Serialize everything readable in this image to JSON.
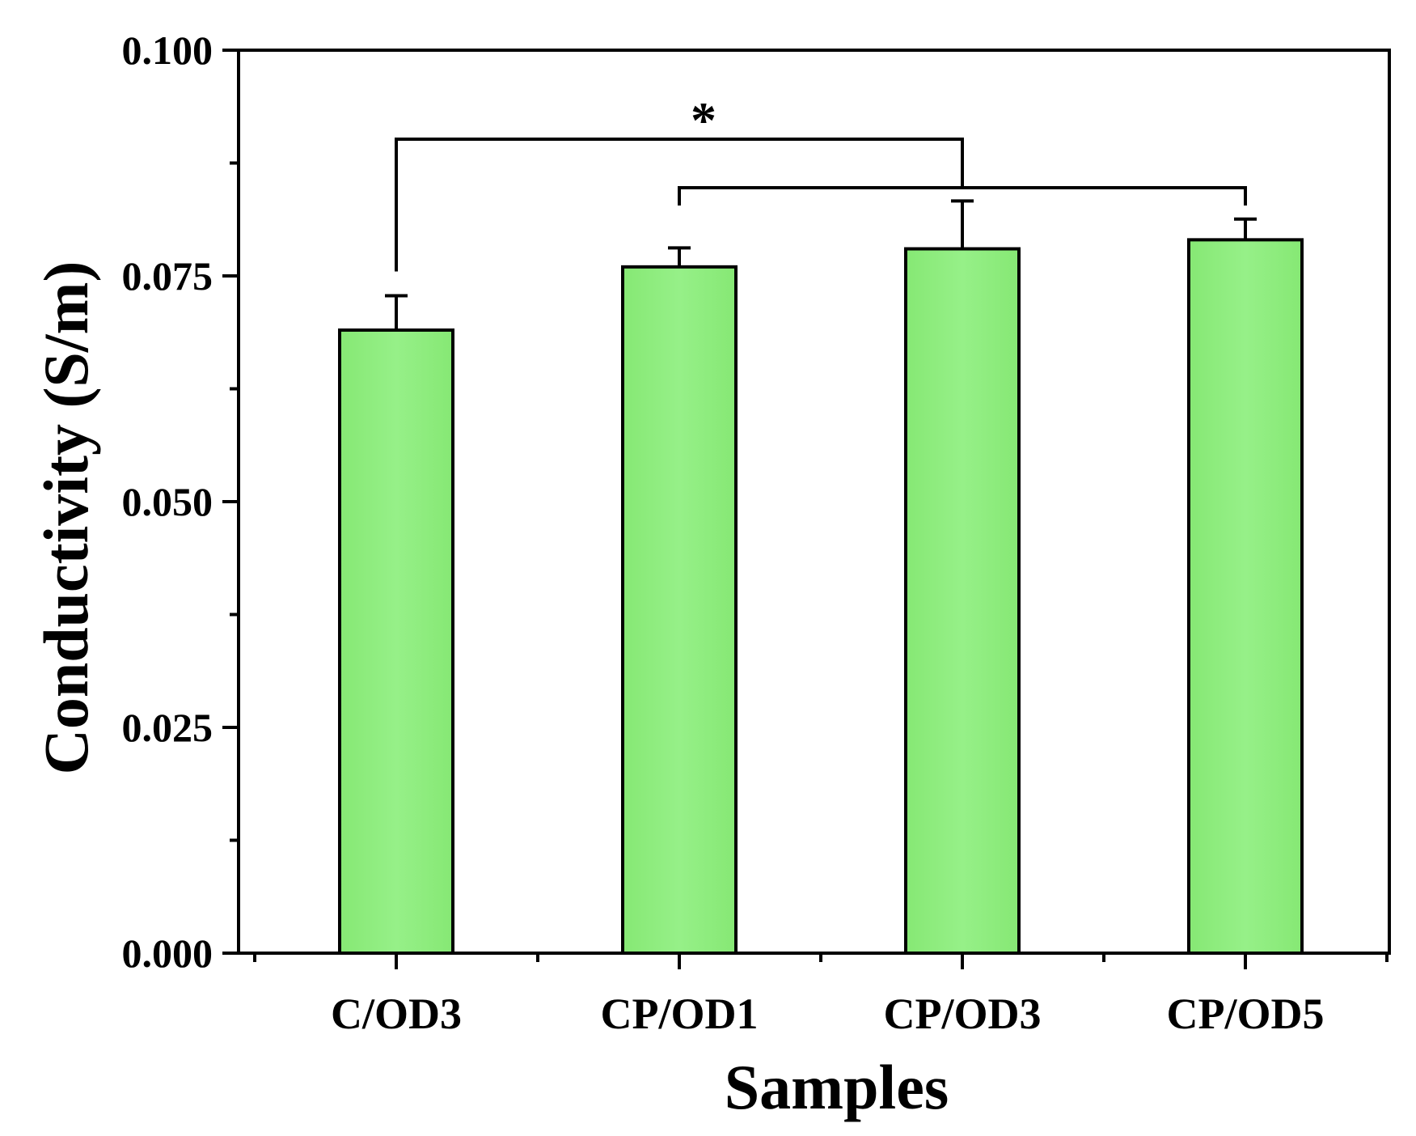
{
  "chart_data": {
    "type": "bar",
    "title": "",
    "xlabel": "Samples",
    "ylabel": "Conductivity (S/m)",
    "categories": [
      "C/OD3",
      "CP/OD1",
      "CP/OD3",
      "CP/OD5"
    ],
    "values": [
      0.069,
      0.076,
      0.078,
      0.079
    ],
    "errors": [
      0.0038,
      0.0021,
      0.0053,
      0.0023
    ],
    "ylim": [
      0,
      0.1
    ],
    "yticks": [
      {
        "value": 0.0,
        "label": "0.000"
      },
      {
        "value": 0.025,
        "label": "0.025"
      },
      {
        "value": 0.05,
        "label": "0.050"
      },
      {
        "value": 0.075,
        "label": "0.075"
      },
      {
        "value": 0.1,
        "label": "0.100"
      }
    ],
    "minor_yticks": [
      0.0125,
      0.0375,
      0.0625,
      0.0875
    ],
    "bar_color": "#90ee80",
    "bar_edge_color": "#000000",
    "grid": false,
    "annotations": [
      {
        "type": "significance",
        "label": "*",
        "from": "C/OD3",
        "to": [
          "CP/OD1",
          "CP/OD3",
          "CP/OD5"
        ]
      }
    ]
  }
}
